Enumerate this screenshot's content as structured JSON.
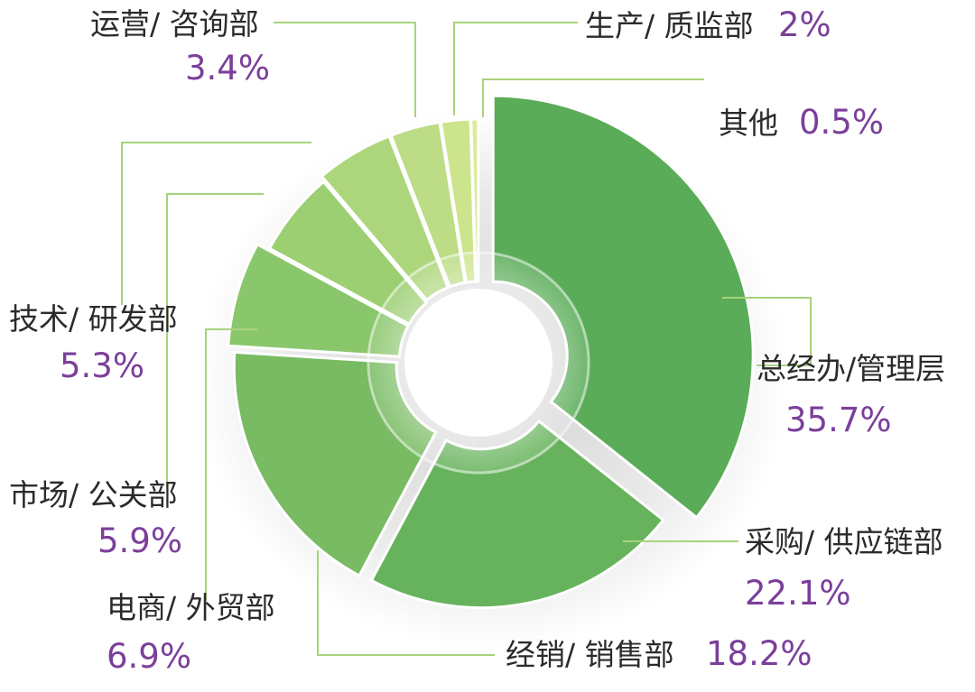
{
  "chart_data": {
    "type": "pie",
    "variant": "exploded-donut",
    "slices": [
      {
        "label": "总经办/管理层",
        "value": 35.7,
        "display": "35.7%",
        "color": "#5aac58"
      },
      {
        "label": "采购/ 供应链部",
        "value": 22.1,
        "display": "22.1%",
        "color": "#67b35d"
      },
      {
        "label": "经销/ 销售部",
        "value": 18.2,
        "display": "18.2%",
        "color": "#78bb62"
      },
      {
        "label": "电商/ 外贸部",
        "value": 6.9,
        "display": "6.9%",
        "color": "#8ac66c"
      },
      {
        "label": "市场/ 公关部",
        "value": 5.9,
        "display": "5.9%",
        "color": "#9cce72"
      },
      {
        "label": "技术/ 研发部",
        "value": 5.3,
        "display": "5.3%",
        "color": "#add67c"
      },
      {
        "label": "运营/ 咨询部",
        "value": 3.4,
        "display": "3.4%",
        "color": "#bcdc86"
      },
      {
        "label": "生产/ 质监部",
        "value": 2,
        "display": "2%",
        "color": "#cce48c"
      },
      {
        "label": "其他",
        "value": 0.5,
        "display": "0.5%",
        "color": "#d9ec9c"
      }
    ]
  }
}
